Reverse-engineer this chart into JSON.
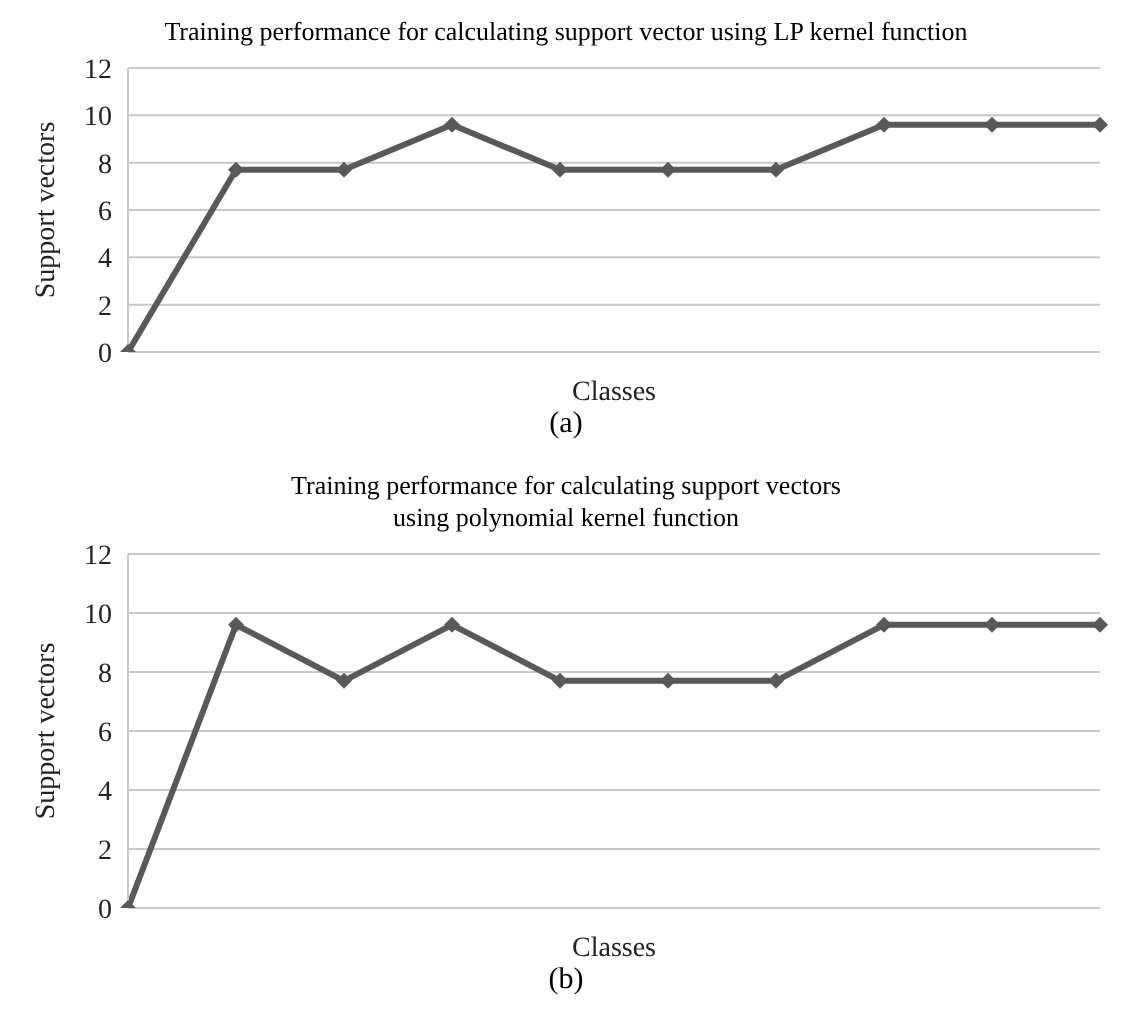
{
  "chart_data": [
    {
      "type": "line",
      "title": "Training performance for calculating support vector using LP kernel function",
      "xlabel": "Classes",
      "ylabel": "Support vectors",
      "categories": [
        null,
        null,
        null,
        null,
        null,
        null,
        null,
        null,
        null,
        null
      ],
      "series": [
        {
          "color": "#595959",
          "values": [
            0,
            7.7,
            7.7,
            9.6,
            7.7,
            7.7,
            7.7,
            9.6,
            9.6,
            9.6
          ]
        }
      ],
      "ylim": [
        0,
        12
      ],
      "yticks": [
        0,
        2,
        4,
        6,
        8,
        10,
        12
      ],
      "grid": "y",
      "marker": "diamond",
      "line_style": "solid",
      "tick_labels": "y",
      "annotations": [
        "(a)"
      ]
    },
    {
      "type": "line",
      "title": "Training performance for calculating support vectors\nusing polynomial kernel function",
      "xlabel": "Classes",
      "ylabel": "Support vectors",
      "categories": [
        null,
        null,
        null,
        null,
        null,
        null,
        null,
        null,
        null,
        null
      ],
      "series": [
        {
          "color": "#595959",
          "values": [
            0,
            9.6,
            7.7,
            9.6,
            7.7,
            7.7,
            7.7,
            9.6,
            9.6,
            9.6
          ]
        }
      ],
      "ylim": [
        0,
        12
      ],
      "yticks": [
        0,
        2,
        4,
        6,
        8,
        10,
        12
      ],
      "grid": "y",
      "marker": "diamond",
      "line_style": "solid",
      "tick_labels": "y",
      "annotations": [
        "(b)"
      ]
    }
  ]
}
